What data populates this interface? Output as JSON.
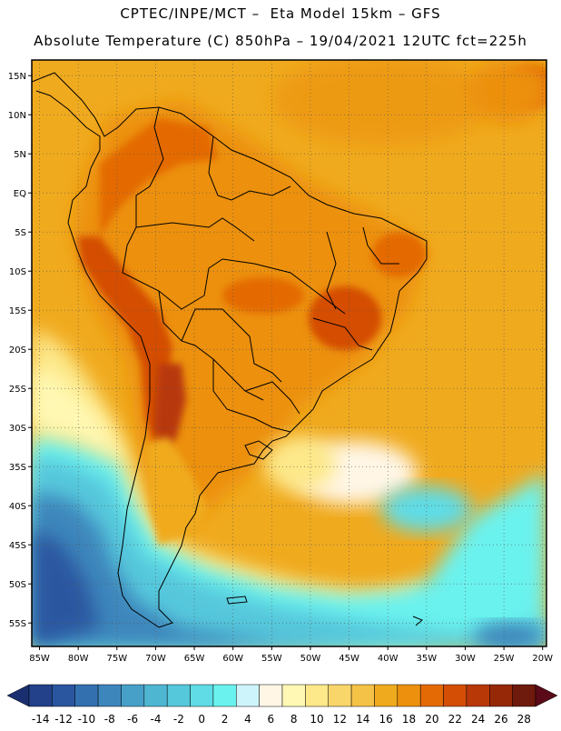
{
  "title": {
    "line1": "CPTEC/INPE/MCT –  Eta Model 15km – GFS",
    "line2": "Absolute Temperature (C) 850hPa – 19/04/2021 12UTC fct=225h"
  },
  "axes": {
    "lon_labels": [
      "85W",
      "80W",
      "75W",
      "70W",
      "65W",
      "60W",
      "55W",
      "50W",
      "45W",
      "40W",
      "35W",
      "30W",
      "25W",
      "20W"
    ],
    "lat_labels": [
      "15N",
      "10N",
      "5N",
      "EQ",
      "5S",
      "10S",
      "15S",
      "20S",
      "25S",
      "30S",
      "35S",
      "40S",
      "45S",
      "50S",
      "55S"
    ],
    "lon_values": [
      -85,
      -80,
      -75,
      -70,
      -65,
      -60,
      -55,
      -50,
      -45,
      -40,
      -35,
      -30,
      -25,
      -20
    ],
    "lat_values": [
      15,
      10,
      5,
      0,
      -5,
      -10,
      -15,
      -20,
      -25,
      -30,
      -35,
      -40,
      -45,
      -50,
      -55
    ],
    "lon_range": [
      -86,
      -19.5
    ],
    "lat_range": [
      17,
      -58
    ]
  },
  "colorbar": {
    "labels": [
      "-14",
      "-12",
      "-10",
      "-8",
      "-6",
      "-4",
      "-2",
      "0",
      "2",
      "4",
      "6",
      "8",
      "10",
      "12",
      "14",
      "16",
      "18",
      "20",
      "22",
      "24",
      "26",
      "28"
    ],
    "colors": [
      "#22418a",
      "#2a56a0",
      "#3370b0",
      "#3d86bc",
      "#47a0c8",
      "#4fb6d2",
      "#56c8dc",
      "#5fdce6",
      "#6af2ee",
      "#cdf4fa",
      "#fff6e6",
      "#fff8b4",
      "#fde88a",
      "#f9d66a",
      "#f4c246",
      "#f0aa1e",
      "#ec900e",
      "#e46a06",
      "#d44e06",
      "#b83808",
      "#962808",
      "#6e1a0c"
    ],
    "low_arrow_color": "#1a2f70",
    "high_arrow_color": "#5a0a18"
  }
}
